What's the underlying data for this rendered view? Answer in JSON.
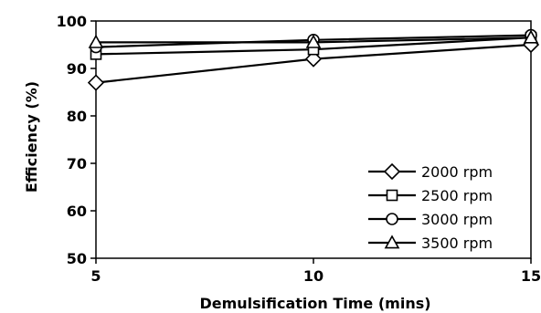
{
  "chart_data": {
    "type": "line",
    "xlabel": "Demulsification Time (mins)",
    "ylabel": "Efficiency (%)",
    "xlim": [
      5,
      15
    ],
    "ylim": [
      50,
      100
    ],
    "x_ticks": [
      "5",
      "10",
      "15"
    ],
    "y_ticks": [
      "50",
      "60",
      "70",
      "80",
      "90",
      "100"
    ],
    "grid": false,
    "legend_position": "bottom-right",
    "x": [
      5,
      10,
      15
    ],
    "series": [
      {
        "name": "2000 rpm",
        "marker": "diamond",
        "values": [
          87,
          92,
          95
        ]
      },
      {
        "name": "2500 rpm",
        "marker": "square",
        "values": [
          93,
          94,
          96.5
        ]
      },
      {
        "name": "3000 rpm",
        "marker": "circle",
        "values": [
          94.5,
          96,
          97
        ]
      },
      {
        "name": "3500 rpm",
        "marker": "triangle",
        "values": [
          95.5,
          95.5,
          96.5
        ]
      }
    ],
    "colors": {
      "line": "#000000",
      "marker_fill": "#ffffff"
    }
  }
}
